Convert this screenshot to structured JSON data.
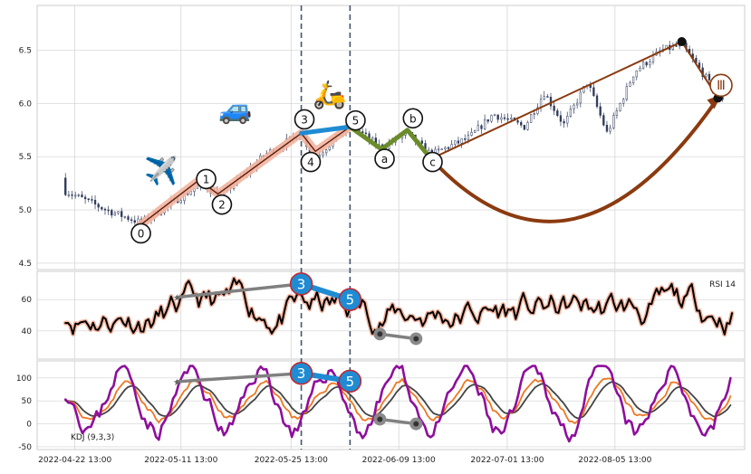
{
  "chart_data": [
    {
      "type": "candlestick",
      "panel": "price",
      "ylim": [
        4.44,
        6.92
      ],
      "yticks": [
        "4.5",
        "5.0",
        "5.5",
        "6.0",
        "6.5"
      ],
      "grid": true,
      "description_points": {
        "start": 5.3,
        "low": 4.88,
        "peak1": 5.72,
        "trough": 5.52,
        "peak2": 5.8,
        "end": 6.05
      },
      "wave_labels": [
        {
          "label": "0",
          "x": 13.2,
          "y": 4.78
        },
        {
          "label": "1",
          "x": 21.5,
          "y": 5.29
        },
        {
          "label": "2",
          "x": 23.5,
          "y": 5.05
        },
        {
          "label": "3",
          "x": 34.0,
          "y": 5.85
        },
        {
          "label": "4",
          "x": 34.8,
          "y": 5.45
        },
        {
          "label": "5",
          "x": 40.5,
          "y": 5.84
        },
        {
          "label": "a",
          "x": 44.2,
          "y": 5.48
        },
        {
          "label": "b",
          "x": 47.8,
          "y": 5.86
        },
        {
          "label": "c",
          "x": 50.3,
          "y": 5.45
        },
        {
          "label": "Ⅲ",
          "x": 87.0,
          "y": 6.17
        }
      ],
      "impulse_path": [
        [
          13.0,
          4.85
        ],
        [
          20.6,
          5.28
        ],
        [
          23.0,
          5.15
        ],
        [
          33.6,
          5.72
        ],
        [
          35.4,
          5.55
        ],
        [
          39.8,
          5.78
        ]
      ],
      "correction_path": [
        [
          39.8,
          5.78
        ],
        [
          43.8,
          5.57
        ],
        [
          47.1,
          5.75
        ],
        [
          50.1,
          5.48
        ]
      ],
      "wave3_segment": [
        [
          33.6,
          5.72
        ],
        [
          39.8,
          5.78
        ]
      ],
      "trend_line": [
        [
          50.1,
          5.48
        ],
        [
          82.0,
          6.58
        ],
        [
          86.6,
          6.05
        ]
      ],
      "curved_arrow": {
        "from": [
          50.1,
          5.48
        ],
        "control": [
          68.0,
          5.0
        ],
        "to": [
          86.6,
          6.05
        ]
      },
      "pivots": [
        [
          50.1,
          5.48
        ],
        [
          82.0,
          6.58
        ],
        [
          86.6,
          6.05
        ]
      ],
      "vertical_markers": [
        33.6,
        39.8
      ],
      "emoji": [
        {
          "symbol": "✈️",
          "x": 15.8,
          "y": 5.28
        },
        {
          "symbol": "🚙",
          "x": 25.2,
          "y": 5.86
        },
        {
          "symbol": "🛵",
          "x": 37.2,
          "y": 6.0
        }
      ]
    },
    {
      "type": "line",
      "panel": "rsi",
      "ylim": [
        22,
        78
      ],
      "yticks": [
        "40",
        "60"
      ],
      "legend": "RSI 14",
      "series": [
        {
          "name": "RSI 14",
          "color": "#000000"
        }
      ],
      "markers": [
        {
          "label": "3",
          "x": 33.6,
          "y": 70
        },
        {
          "label": "5",
          "x": 39.8,
          "y": 60
        }
      ],
      "divergence_line": [
        [
          17.8,
          61.5
        ],
        [
          33.6,
          70
        ]
      ],
      "wave_segment": [
        [
          33.6,
          70
        ],
        [
          39.8,
          60
        ]
      ],
      "lower_segment": [
        [
          43.6,
          38
        ],
        [
          48.2,
          35
        ]
      ]
    },
    {
      "type": "line",
      "panel": "kdj",
      "ylim": [
        -56,
        137
      ],
      "yticks": [
        "-50",
        "0",
        "50",
        "100"
      ],
      "legend": "KDJ (9,3,3)",
      "series": [
        {
          "name": "K",
          "color": "#ee7722"
        },
        {
          "name": "D",
          "color": "#444444"
        },
        {
          "name": "J",
          "color": "#8e0e9c"
        }
      ],
      "markers": [
        {
          "label": "3",
          "x": 33.6,
          "y": 110
        },
        {
          "label": "5",
          "x": 39.8,
          "y": 93
        }
      ],
      "divergence_line": [
        [
          17.8,
          92
        ],
        [
          33.6,
          110
        ]
      ],
      "wave_segment": [
        [
          33.6,
          110
        ],
        [
          39.8,
          93
        ]
      ],
      "lower_segment": [
        [
          43.6,
          10
        ],
        [
          48.2,
          0
        ]
      ]
    }
  ],
  "xaxis": {
    "tick_labels": [
      "2022-04-22 13:00",
      "2022-05-11 13:00",
      "2022-05-25 13:00",
      "2022-06-09 13:00",
      "2022-07-01 13:00",
      "2022-08-05 13:00"
    ],
    "tick_positions": [
      4.8,
      18.3,
      32.3,
      46.0,
      59.8,
      73.5
    ],
    "range": [
      0,
      90
    ]
  },
  "colors": {
    "wave_impulse": "#f3b49f",
    "wave_3_5": "#1f8bd3",
    "correction": "#6b8c2a",
    "trend": "#8b3a0f",
    "grid": "#d0d0d0",
    "divergence": "#808080",
    "marker_blue": "#1f8bd3",
    "marker_border": "#c1272d"
  }
}
